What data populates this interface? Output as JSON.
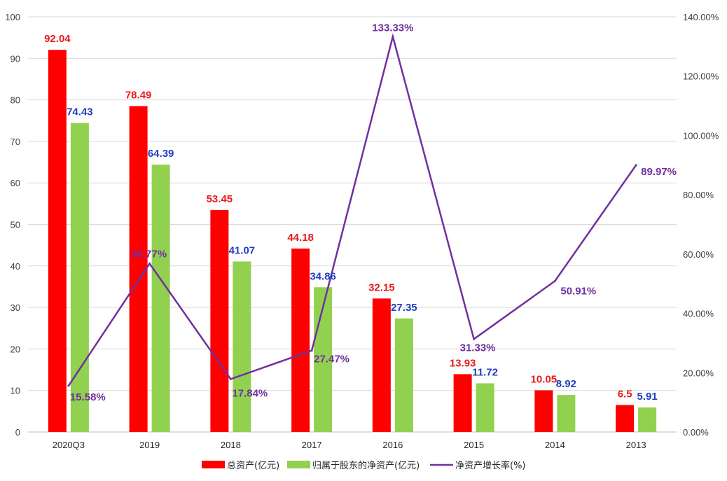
{
  "chart_data": {
    "type": "bar",
    "title": "",
    "categories": [
      "2020Q3",
      "2019",
      "2018",
      "2017",
      "2016",
      "2015",
      "2014",
      "2013"
    ],
    "series": [
      {
        "name": "总资产(亿元)",
        "kind": "bar",
        "axis": "left",
        "color": "#ff0000",
        "label_color": "#e8191c",
        "values": [
          92.04,
          78.49,
          53.45,
          44.18,
          32.15,
          13.93,
          10.05,
          6.5
        ],
        "labels": [
          "92.04",
          "78.49",
          "53.45",
          "44.18",
          "32.15",
          "13.93",
          "10.05",
          "6.5"
        ]
      },
      {
        "name": "归属于股东的净资产(亿元)",
        "kind": "bar",
        "axis": "left",
        "color": "#92d050",
        "label_color": "#1f3fbf",
        "values": [
          74.43,
          64.39,
          41.07,
          34.86,
          27.35,
          11.72,
          8.92,
          5.91
        ],
        "labels": [
          "74.43",
          "64.39",
          "41.07",
          "34.86",
          "27.35",
          "11.72",
          "8.92",
          "5.91"
        ]
      },
      {
        "name": "净资产增长率(%)",
        "kind": "line",
        "axis": "right",
        "color": "#7030a0",
        "label_color": "#7030a0",
        "values": [
          15.58,
          56.77,
          17.84,
          27.47,
          133.33,
          31.33,
          50.91,
          89.97
        ],
        "labels": [
          "15.58%",
          "56.77%",
          "17.84%",
          "27.47%",
          "133.33%",
          "31.33%",
          "50.91%",
          "89.97%"
        ]
      }
    ],
    "y_left": {
      "min": 0,
      "max": 100,
      "ticks": [
        "0",
        "10",
        "20",
        "30",
        "40",
        "50",
        "60",
        "70",
        "80",
        "90",
        "100"
      ]
    },
    "y_right": {
      "min": 0,
      "max": 140,
      "ticks": [
        "0.00%",
        "20.00%",
        "40.00%",
        "60.00%",
        "80.00%",
        "100.00%",
        "120.00%",
        "140.00%"
      ]
    },
    "grid": true,
    "legend_position": "bottom-center"
  }
}
